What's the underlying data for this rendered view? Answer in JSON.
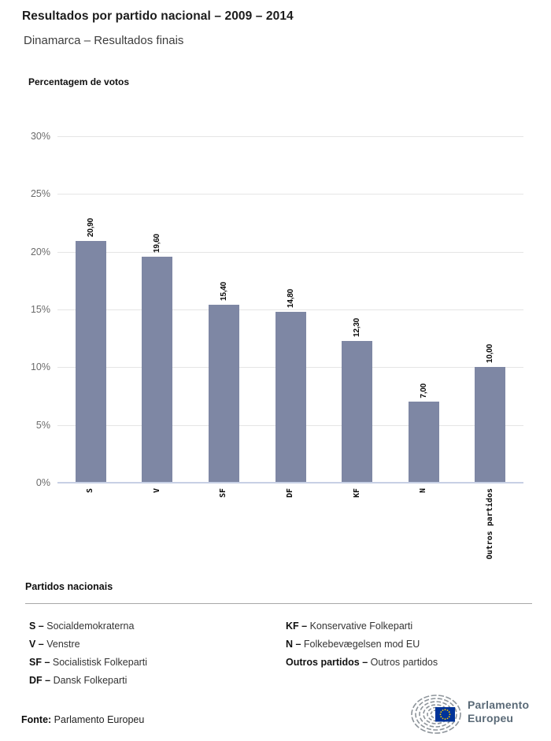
{
  "header": {
    "title": "Resultados por partido nacional – 2009 – 2014",
    "subtitle": "Dinamarca – Resultados finais"
  },
  "chart_data": {
    "type": "bar",
    "title": "Percentagem de votos",
    "categories": [
      "S",
      "V",
      "SF",
      "DF",
      "KF",
      "N",
      "Outros partidos"
    ],
    "values": [
      20.9,
      19.6,
      15.4,
      14.8,
      12.3,
      7.0,
      10.0
    ],
    "value_labels": [
      "20,90",
      "19,60",
      "15,40",
      "14,80",
      "12,30",
      "7,00",
      "10,00"
    ],
    "xlabel": "",
    "ylabel": "Percentagem de votos",
    "ylim": [
      0,
      30
    ],
    "ytick_step": 5,
    "ytick_labels": [
      "0%",
      "5%",
      "10%",
      "15%",
      "20%",
      "25%",
      "30%"
    ],
    "grid": true,
    "legend_position": "none",
    "bar_color": "#7e87a4",
    "baseline_color": "#c7d0e5",
    "gridline_color": "#e5e5e5"
  },
  "legend": {
    "heading": "Partidos nacionais",
    "columns": [
      [
        {
          "abbr": "S –",
          "name": "Socialdemokraterna"
        },
        {
          "abbr": "V –",
          "name": "Venstre"
        },
        {
          "abbr": "SF –",
          "name": "Socialistisk Folkeparti"
        },
        {
          "abbr": "DF –",
          "name": "Dansk Folkeparti"
        }
      ],
      [
        {
          "abbr": "KF –",
          "name": "Konservative Folkeparti"
        },
        {
          "abbr": "N –",
          "name": "Folkebevægelsen mod EU"
        },
        {
          "abbr": "Outros partidos –",
          "name": "Outros partidos"
        }
      ]
    ]
  },
  "footer": {
    "source_label": "Fonte:",
    "source_value": "Parlamento Europeu",
    "logo_line1": "Parlamento",
    "logo_line2": "Europeu",
    "logo_text_color": "#5a6a77",
    "flag_blue": "#003399",
    "star_yellow": "#ffcc00",
    "hemicycle_gray": "#8d949a"
  }
}
